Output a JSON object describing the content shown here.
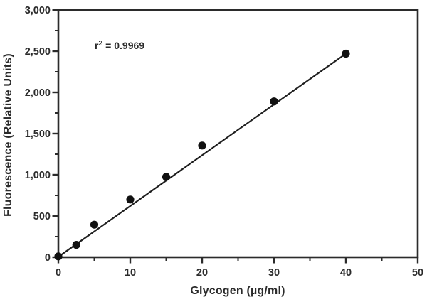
{
  "chart_data": {
    "type": "scatter",
    "title": "",
    "xlabel": "Glycogen (µg/ml)",
    "ylabel": "Fluorescence (Relative Units)",
    "annotation": {
      "base": "r",
      "sup": "2",
      "rest": " = 0.9969"
    },
    "x": [
      0,
      2.5,
      5,
      10,
      15,
      20,
      30,
      40
    ],
    "y": [
      10,
      150,
      395,
      700,
      975,
      1355,
      1890,
      2470
    ],
    "fit_line": {
      "x1": 0,
      "y1": 5,
      "x2": 40,
      "y2": 2470,
      "r_squared": 0.9969
    },
    "xlim": [
      0,
      50
    ],
    "ylim": [
      0,
      3000
    ],
    "x_major_ticks": [
      0,
      10,
      20,
      30,
      40,
      50
    ],
    "x_tick_labels": [
      "0",
      "10",
      "20",
      "30",
      "40",
      "50"
    ],
    "x_minor_ticks": [
      5,
      15,
      25,
      35,
      45
    ],
    "y_major_ticks": [
      0,
      500,
      1000,
      1500,
      2000,
      2500,
      3000
    ],
    "y_tick_labels": [
      "0",
      "500",
      "1,000",
      "1,500",
      "2,000",
      "2,500",
      "3,000"
    ],
    "y_minor_ticks": [
      250,
      750,
      1250,
      1750,
      2250,
      2750
    ],
    "grid": false,
    "legend": null,
    "colors": {
      "marker": "#111111",
      "fit_line": "#1f1f1f",
      "frame": "#2b2b2b",
      "text": "#2b2b2b",
      "background": "#ffffff"
    }
  }
}
